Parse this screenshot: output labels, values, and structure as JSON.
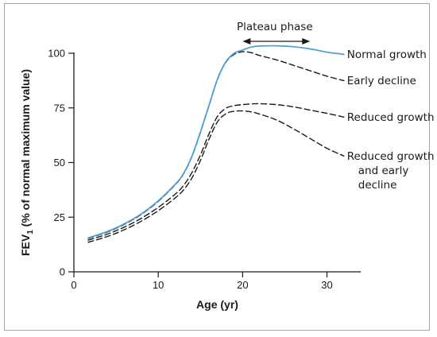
{
  "chart_data": {
    "type": "line",
    "title": "",
    "xlabel": "Age (yr)",
    "ylabel_main": "FEV",
    "ylabel_sub": "1",
    "ylabel_rest": " (% of normal maximum value)",
    "xlim": [
      0,
      34
    ],
    "ylim": [
      0,
      104
    ],
    "xticks": [
      0,
      10,
      20,
      30
    ],
    "yticks": [
      0,
      25,
      50,
      75,
      100
    ],
    "grid": false,
    "annotation": {
      "label": "Plateau phase",
      "x_start": 20,
      "x_end": 28,
      "arrow": "double-headed"
    },
    "series": [
      {
        "name": "Normal growth",
        "color": "#4a9fd6",
        "style": "solid",
        "points": [
          [
            1.7,
            15.5
          ],
          [
            4,
            18.5
          ],
          [
            6,
            22
          ],
          [
            8,
            26.5
          ],
          [
            10,
            32.5
          ],
          [
            12,
            40
          ],
          [
            13,
            45
          ],
          [
            14,
            53
          ],
          [
            15,
            64
          ],
          [
            16,
            76
          ],
          [
            17,
            88
          ],
          [
            18,
            96
          ],
          [
            19,
            100
          ],
          [
            20,
            101.5
          ],
          [
            21,
            102.8
          ],
          [
            22,
            103.3
          ],
          [
            24,
            103.4
          ],
          [
            26,
            103
          ],
          [
            28,
            102
          ],
          [
            30,
            100.5
          ],
          [
            32,
            99.5
          ]
        ]
      },
      {
        "name": "Early decline",
        "color": "#1a1a1a",
        "style": "dashed",
        "points": [
          [
            1.7,
            15.3
          ],
          [
            4,
            18.3
          ],
          [
            6,
            21.8
          ],
          [
            8,
            26.3
          ],
          [
            10,
            32.3
          ],
          [
            12,
            39.8
          ],
          [
            13,
            44.8
          ],
          [
            14,
            52.8
          ],
          [
            15,
            63.8
          ],
          [
            16,
            75.8
          ],
          [
            17,
            87.8
          ],
          [
            18,
            95.8
          ],
          [
            19,
            99.5
          ],
          [
            20,
            100.7
          ],
          [
            21,
            100.3
          ],
          [
            22,
            99
          ],
          [
            24,
            97
          ],
          [
            26,
            94.5
          ],
          [
            28,
            92
          ],
          [
            30,
            89.5
          ],
          [
            32,
            87.5
          ]
        ]
      },
      {
        "name": "Reduced growth",
        "color": "#1a1a1a",
        "style": "dashed",
        "points": [
          [
            1.7,
            14.5
          ],
          [
            4,
            17.3
          ],
          [
            6,
            20.5
          ],
          [
            8,
            24.5
          ],
          [
            10,
            29.5
          ],
          [
            12,
            35.5
          ],
          [
            13,
            39.5
          ],
          [
            14,
            45.5
          ],
          [
            15,
            53.5
          ],
          [
            16,
            63
          ],
          [
            17,
            71
          ],
          [
            18,
            74.8
          ],
          [
            19,
            76
          ],
          [
            20,
            76.5
          ],
          [
            21,
            76.8
          ],
          [
            22,
            76.9
          ],
          [
            24,
            76.5
          ],
          [
            26,
            75.5
          ],
          [
            28,
            74
          ],
          [
            30,
            72.5
          ],
          [
            32,
            70.8
          ]
        ]
      },
      {
        "name": "Reduced growth and early decline",
        "label_lines": [
          "Reduced growth",
          "and early",
          "decline"
        ],
        "color": "#1a1a1a",
        "style": "dashed",
        "points": [
          [
            1.7,
            13.5
          ],
          [
            4,
            16.2
          ],
          [
            6,
            19.3
          ],
          [
            8,
            23.2
          ],
          [
            10,
            28
          ],
          [
            12,
            33.8
          ],
          [
            13,
            37.5
          ],
          [
            14,
            43
          ],
          [
            15,
            51
          ],
          [
            16,
            60.5
          ],
          [
            17,
            68.5
          ],
          [
            18,
            72.3
          ],
          [
            19,
            73.5
          ],
          [
            20,
            73.6
          ],
          [
            21,
            73.2
          ],
          [
            22,
            72.2
          ],
          [
            24,
            69.5
          ],
          [
            26,
            65.5
          ],
          [
            28,
            61
          ],
          [
            30,
            56.5
          ],
          [
            32,
            53
          ]
        ]
      }
    ]
  }
}
